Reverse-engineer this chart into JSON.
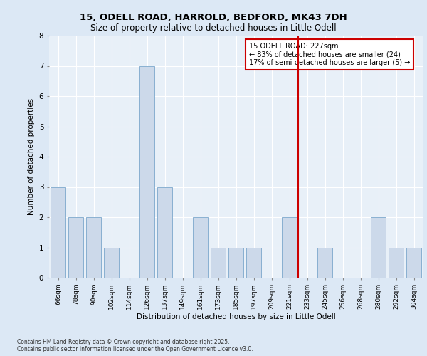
{
  "title1": "15, ODELL ROAD, HARROLD, BEDFORD, MK43 7DH",
  "title2": "Size of property relative to detached houses in Little Odell",
  "xlabel": "Distribution of detached houses by size in Little Odell",
  "ylabel": "Number of detached properties",
  "bar_labels": [
    "66sqm",
    "78sqm",
    "90sqm",
    "102sqm",
    "114sqm",
    "126sqm",
    "137sqm",
    "149sqm",
    "161sqm",
    "173sqm",
    "185sqm",
    "197sqm",
    "209sqm",
    "221sqm",
    "233sqm",
    "245sqm",
    "256sqm",
    "268sqm",
    "280sqm",
    "292sqm",
    "304sqm"
  ],
  "bar_values": [
    3,
    2,
    2,
    1,
    0,
    7,
    3,
    0,
    2,
    1,
    1,
    1,
    0,
    2,
    0,
    1,
    0,
    0,
    2,
    1,
    1
  ],
  "bar_color": "#ccd9ea",
  "bar_edge_color": "#7ba7cc",
  "vline_x": 13.5,
  "vline_color": "#cc0000",
  "annotation_text": "15 ODELL ROAD: 227sqm\n← 83% of detached houses are smaller (24)\n17% of semi-detached houses are larger (5) →",
  "annotation_box_color": "#ffffff",
  "annotation_box_edge": "#cc0000",
  "ylim": [
    0,
    8
  ],
  "yticks": [
    0,
    1,
    2,
    3,
    4,
    5,
    6,
    7,
    8
  ],
  "footer1": "Contains HM Land Registry data © Crown copyright and database right 2025.",
  "footer2": "Contains public sector information licensed under the Open Government Licence v3.0.",
  "bg_color": "#dce8f5",
  "plot_bg_color": "#e8f0f8"
}
